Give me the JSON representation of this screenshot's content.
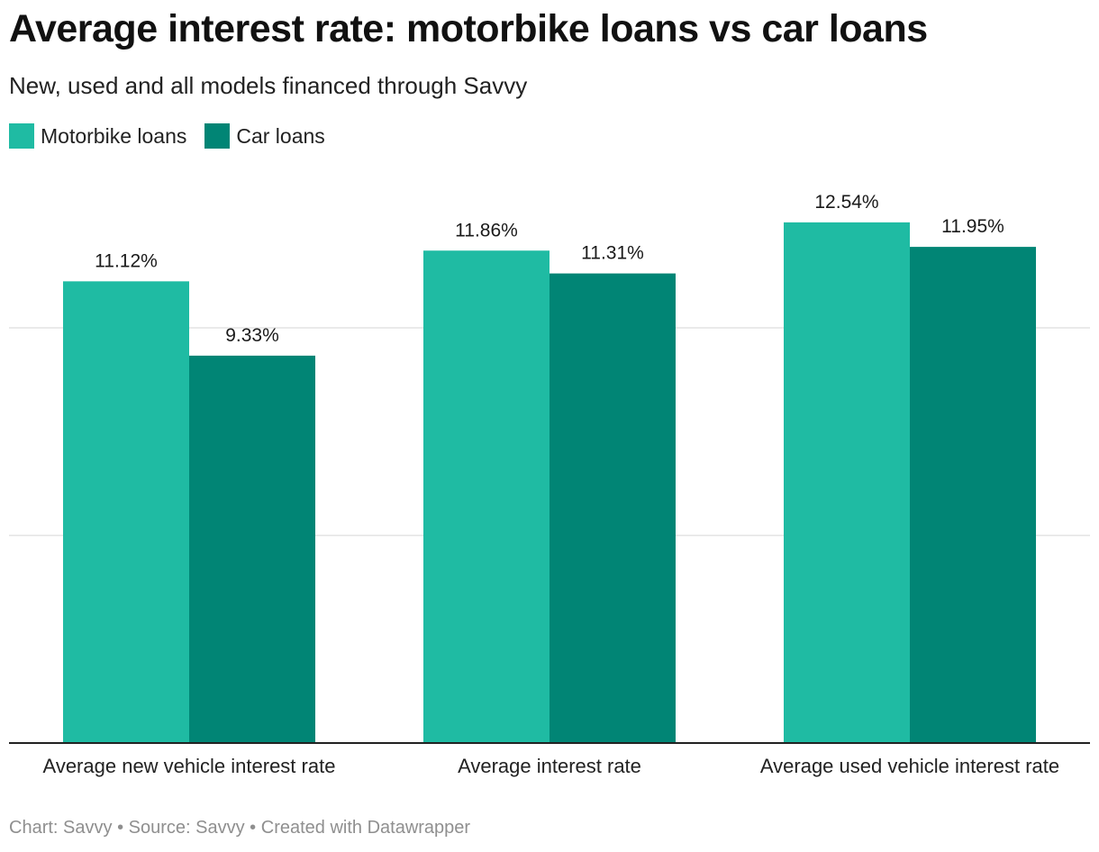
{
  "title": "Average interest rate: motorbike loans vs car loans",
  "subtitle": "New, used and all models financed through Savvy",
  "legend": [
    {
      "label": "Motorbike loans",
      "color": "#1fbba3"
    },
    {
      "label": "Car loans",
      "color": "#018575"
    }
  ],
  "footer": {
    "chart_label": "Chart:",
    "chart_value": "Savvy",
    "source_label": "Source:",
    "source_value": "Savvy",
    "created": "Created with Datawrapper",
    "separator": "•"
  },
  "chart_data": {
    "type": "bar",
    "categories": [
      "Average new vehicle interest rate",
      "Average interest rate",
      "Average used vehicle interest rate"
    ],
    "series": [
      {
        "name": "Motorbike loans",
        "color": "#1fbba3",
        "values": [
          11.12,
          11.86,
          12.54
        ],
        "labels": [
          "11.12%",
          "11.86%",
          "12.54%"
        ]
      },
      {
        "name": "Car loans",
        "color": "#018575",
        "values": [
          9.33,
          11.31,
          11.95
        ],
        "labels": [
          "9.33%",
          "11.31%",
          "11.95%"
        ]
      }
    ],
    "ylim": [
      0,
      16
    ],
    "gridlines": [
      5,
      10
    ],
    "grid": true,
    "legend_position": "top-left"
  }
}
